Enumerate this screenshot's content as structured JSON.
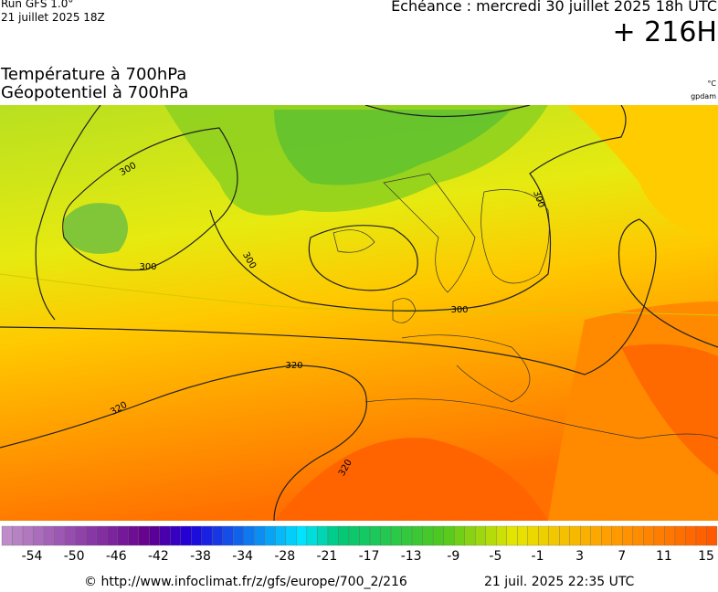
{
  "header": {
    "run": "Run GFS 1.0°",
    "run_date": "21 juillet 2025 18Z",
    "valid": "Echéance : mercredi 30 juillet 2025 18h UTC",
    "lead": "+ 216H"
  },
  "titles": {
    "temperature": "Température à 700hPa",
    "geopotential": "Géopotentiel à 700hPa",
    "temperature_unit": "°C",
    "geopotential_unit": "gpdam"
  },
  "contour_labels": [
    "300",
    "300",
    "300",
    "300",
    "300",
    "320",
    "320",
    "320"
  ],
  "colorbar": {
    "labels": [
      -54,
      -50,
      -46,
      -42,
      -38,
      -34,
      -28,
      -21,
      -17,
      -13,
      -9,
      -5,
      -1,
      3,
      7,
      11,
      15
    ]
  },
  "footer": {
    "source": "© http://www.infoclimat.fr/z/gfs/europe/700_2/216",
    "generated": "21 juil. 2025 22:35 UTC"
  }
}
